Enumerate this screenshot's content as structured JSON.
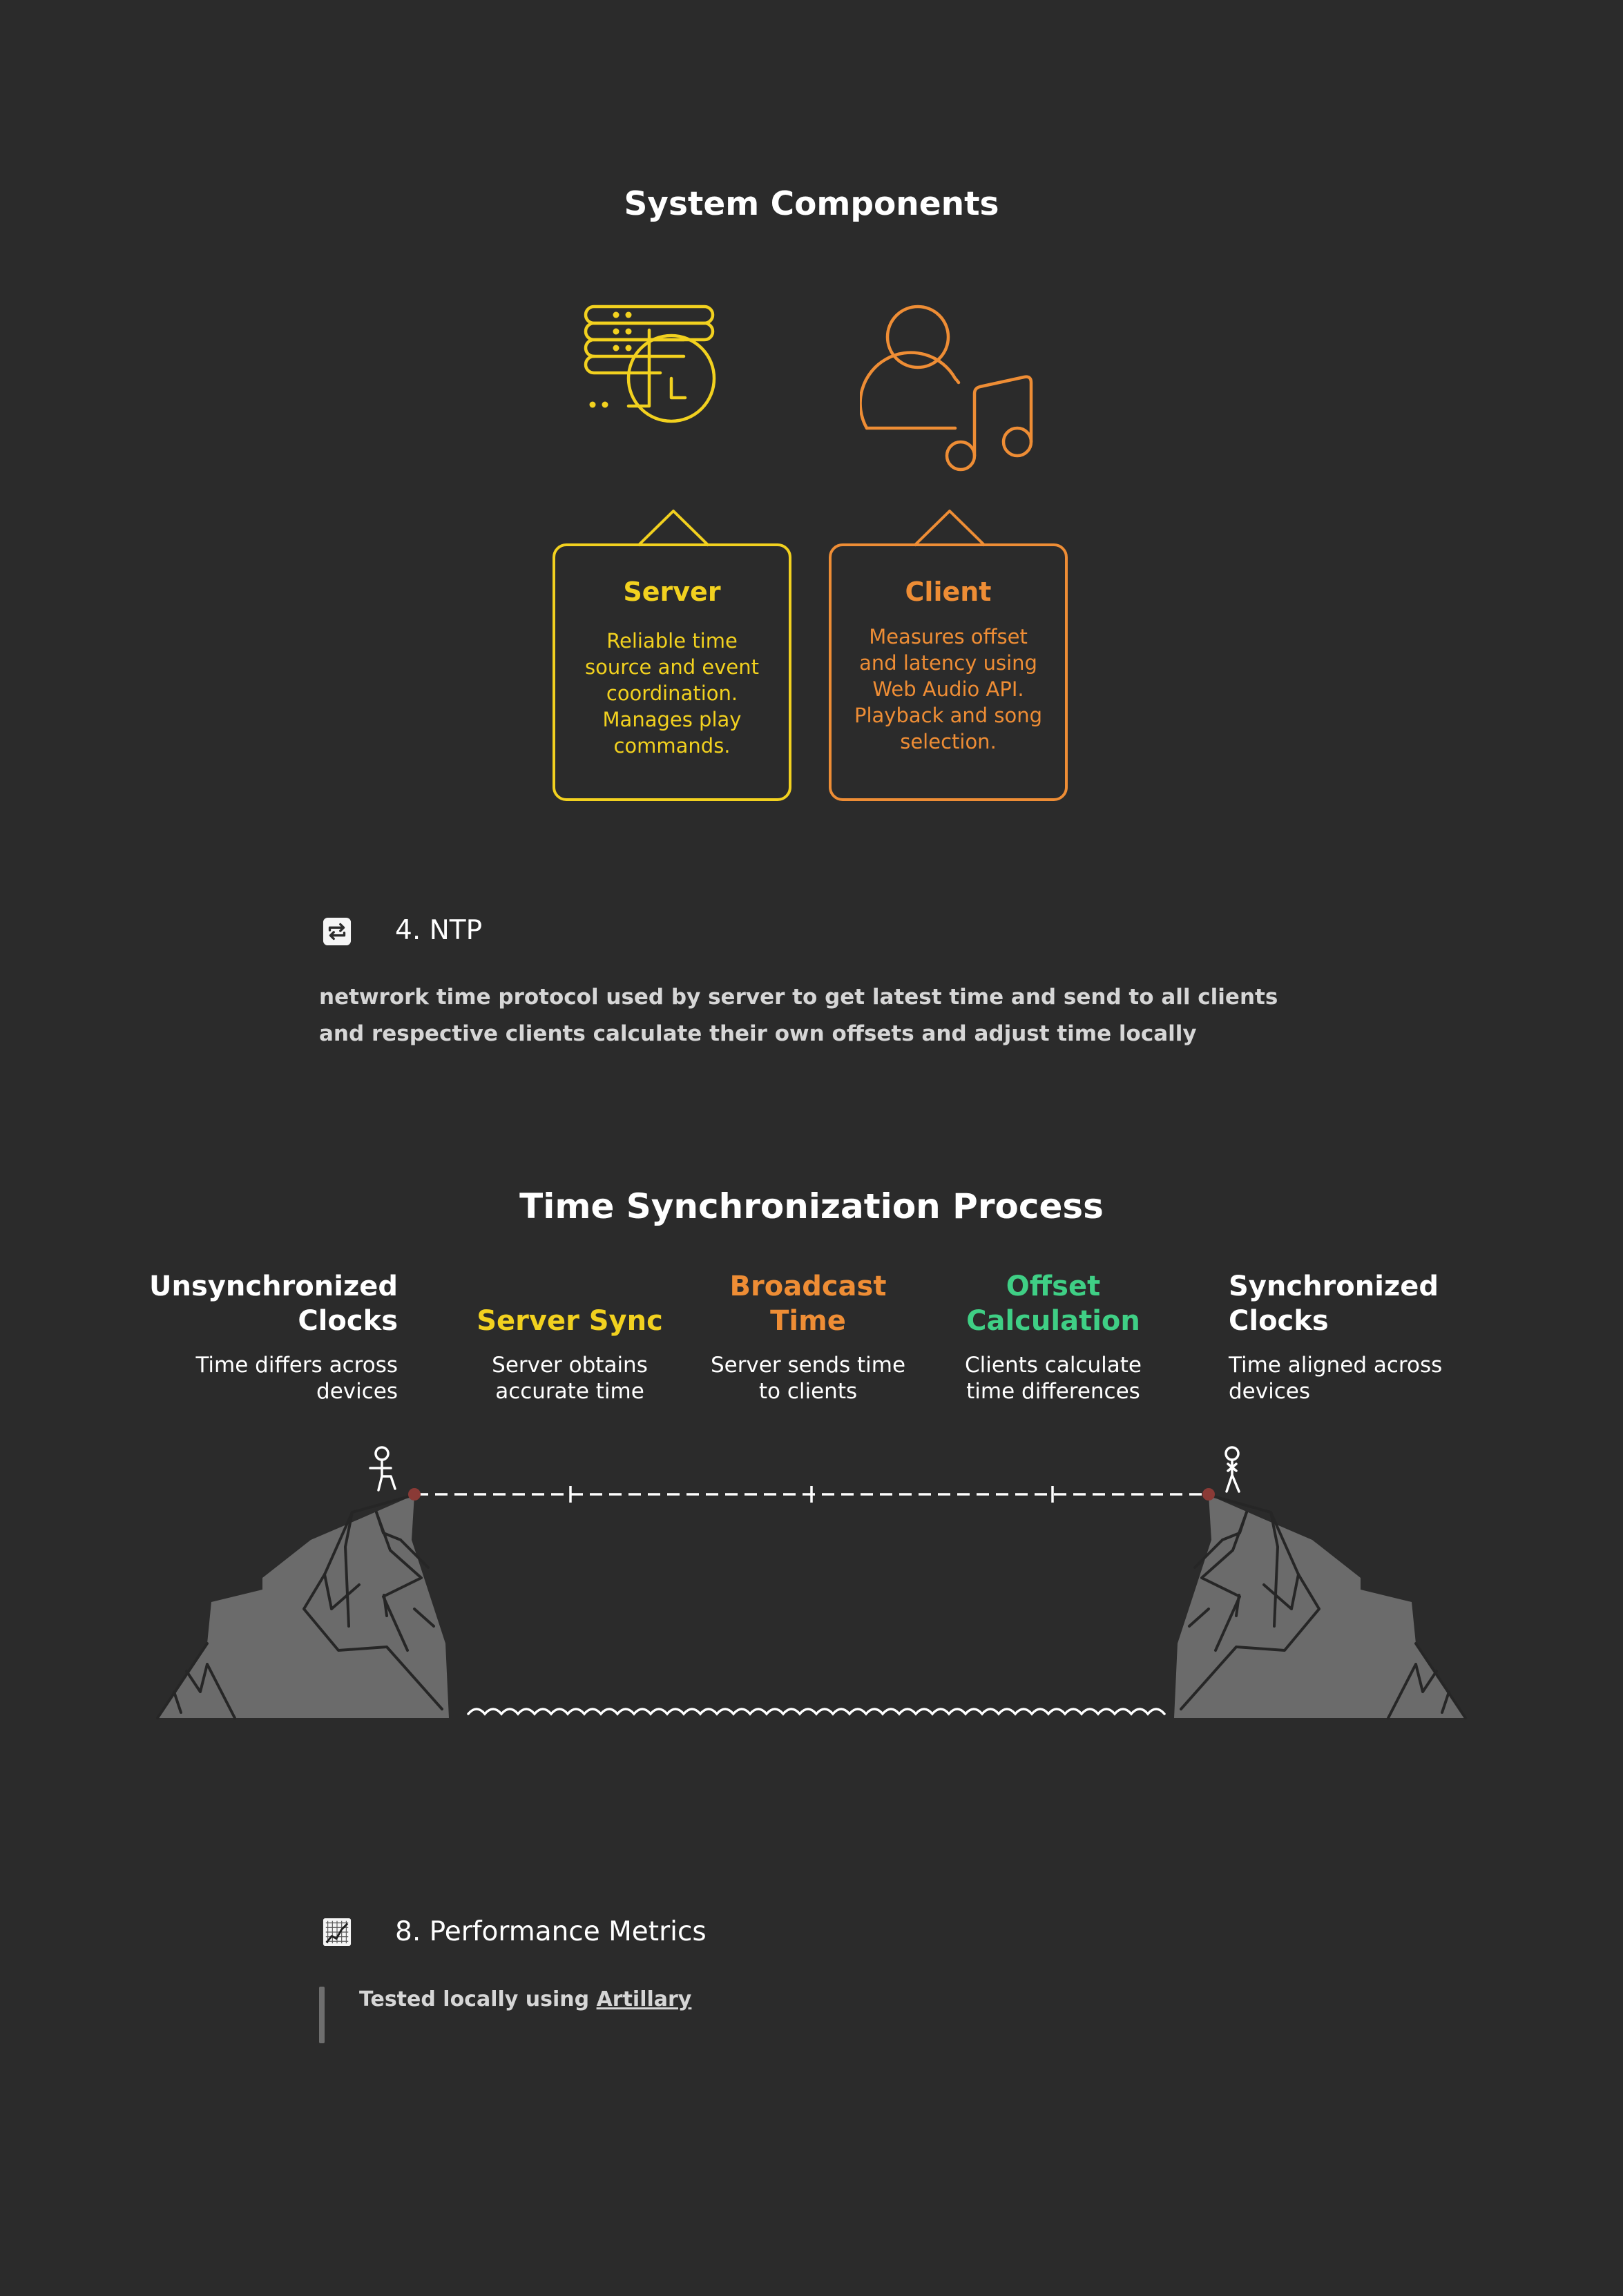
{
  "system_components": {
    "title": "System Components",
    "server": {
      "title": "Server",
      "description": "Reliable time source and event coordination. Manages play commands.",
      "icon": "server-clock-icon",
      "color": "#f2d11f"
    },
    "client": {
      "title": "Client",
      "description": "Measures offset and latency using Web Audio API. Playback and song selection.",
      "icon": "user-music-icon",
      "color": "#ee8d35"
    }
  },
  "ntp_section": {
    "icon": "repeat-icon",
    "heading": "4. NTP",
    "body": "netwrork time protocol used by server to get latest time and send to all clients and respective clients calculate their own offsets and adjust time locally"
  },
  "time_sync": {
    "title": "Time Synchronization Process",
    "steps": [
      {
        "title_lines": [
          "Unsynchronized",
          "Clocks"
        ],
        "desc_lines": [
          "Time differs across",
          "devices"
        ],
        "color": "#ffffff"
      },
      {
        "title_lines": [
          "Server Sync"
        ],
        "desc_lines": [
          "Server obtains",
          "accurate time"
        ],
        "color": "#f2d11f"
      },
      {
        "title_lines": [
          "Broadcast",
          "Time"
        ],
        "desc_lines": [
          "Server sends time",
          "to clients"
        ],
        "color": "#ee8d35"
      },
      {
        "title_lines": [
          "Offset",
          "Calculation"
        ],
        "desc_lines": [
          "Clients calculate",
          "time differences"
        ],
        "color": "#3fcf85"
      },
      {
        "title_lines": [
          "Synchronized",
          "Clocks"
        ],
        "desc_lines": [
          "Time aligned across",
          "devices"
        ],
        "color": "#ffffff"
      }
    ]
  },
  "performance_section": {
    "icon": "chart-icon",
    "heading": "8. Performance Metrics",
    "text_prefix": "Tested locally using",
    "link_text": "Artillary"
  }
}
